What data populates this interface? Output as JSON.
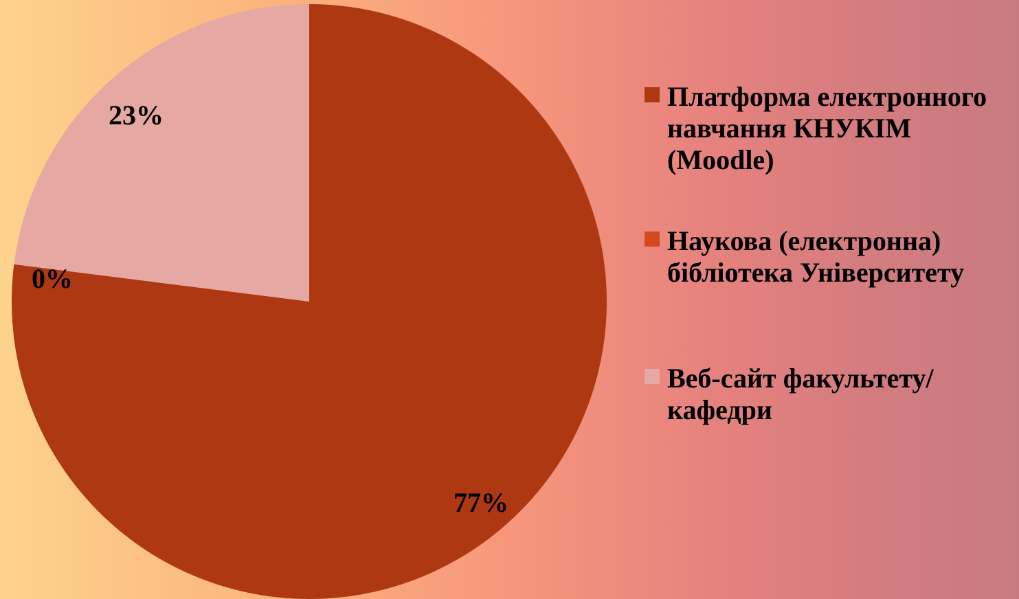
{
  "chart_data": {
    "type": "pie",
    "title": "",
    "categories": [
      "Платформа електронного навчання КНУКІМ (Moodle)",
      "Наукова (електронна) бібліотека Університету",
      "Веб-сайт факультету/кафедри"
    ],
    "values": [
      77,
      0,
      23
    ],
    "data_labels": [
      "77%",
      "0%",
      "23%"
    ],
    "colors": [
      "#ad3812",
      "#d24a1e",
      "#e5a8a2"
    ],
    "legend_position": "right",
    "legend": [
      {
        "label": "Платформа електронного навчання КНУКІМ (Moodle)",
        "color": "#ad3812"
      },
      {
        "label": "Наукова (електронна) бібліотека Університету",
        "color": "#d24a1e"
      },
      {
        "label": "Веб-сайт факультету/кафедри",
        "color": "#e5a8a2"
      }
    ]
  }
}
